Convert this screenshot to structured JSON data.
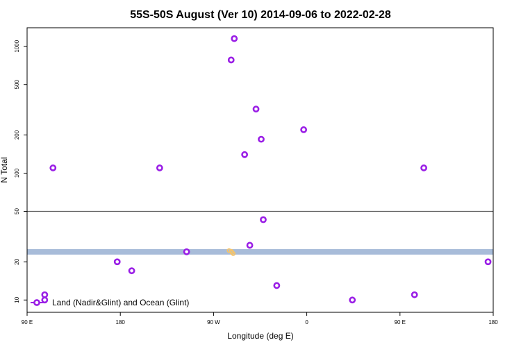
{
  "chart_data": {
    "type": "scatter",
    "title": "55S-50S August (Ver 10)   2014-09-06 to 2022-02-28",
    "xlabel": "Longitude (deg E)",
    "ylabel": "N Total",
    "x_axis": {
      "range": [
        90,
        180
      ],
      "direction": "longitude wrapping eastward from 90 E through 180 and 0 back to 180",
      "ticks": [
        {
          "value": 90,
          "label": "90 E"
        },
        {
          "value": 180,
          "label": "180"
        },
        {
          "value": 270,
          "label": "90 W"
        },
        {
          "value": 360,
          "label": "0"
        },
        {
          "value": 450,
          "label": "90 E"
        },
        {
          "value": 540,
          "label": "180"
        }
      ]
    },
    "y_axis": {
      "scale": "log",
      "range": [
        8,
        1400
      ],
      "ticks": [
        {
          "value": 10,
          "label": "10"
        },
        {
          "value": 20,
          "label": "20"
        },
        {
          "value": 50,
          "label": "50"
        },
        {
          "value": 100,
          "label": "100"
        },
        {
          "value": 200,
          "label": "200"
        },
        {
          "value": 500,
          "label": "500"
        },
        {
          "value": 1000,
          "label": "1000"
        }
      ]
    },
    "reference_line": {
      "y": 50,
      "color": "#555555"
    },
    "band": {
      "y_range": [
        22.8,
        25.2
      ],
      "color": "#a8bcd9"
    },
    "grid": false,
    "legend": {
      "placement": "bottom-left"
    },
    "series": [
      {
        "name": "Land (Nadir&Glint) and Ocean (Glint)",
        "color": "#9a1ee6",
        "marker": "open-circle",
        "points": [
          {
            "lon": 107,
            "n": 10
          },
          {
            "lon": 107,
            "n": 11
          },
          {
            "lon": 115,
            "n": 110
          },
          {
            "lon": 177,
            "n": 20
          },
          {
            "lon": 191,
            "n": 17
          },
          {
            "lon": 218,
            "n": 110
          },
          {
            "lon": 244,
            "n": 24
          },
          {
            "lon": 287,
            "n": 780
          },
          {
            "lon": 290,
            "n": 1150
          },
          {
            "lon": 300,
            "n": 140
          },
          {
            "lon": 305,
            "n": 27
          },
          {
            "lon": 311,
            "n": 320
          },
          {
            "lon": 316,
            "n": 185
          },
          {
            "lon": 318,
            "n": 43
          },
          {
            "lon": 331,
            "n": 13
          },
          {
            "lon": 357,
            "n": 220
          },
          {
            "lon": 404,
            "n": 10
          },
          {
            "lon": 464,
            "n": 11
          },
          {
            "lon": 473,
            "n": 110
          },
          {
            "lon": 535,
            "n": 20
          }
        ]
      }
    ],
    "faint_markers": {
      "color": "#f5c46a",
      "points": [
        {
          "lon": 285,
          "n": 24.5
        },
        {
          "lon": 287,
          "n": 24.2
        },
        {
          "lon": 288,
          "n": 23.7
        },
        {
          "lon": 289,
          "n": 23.2
        }
      ]
    }
  }
}
